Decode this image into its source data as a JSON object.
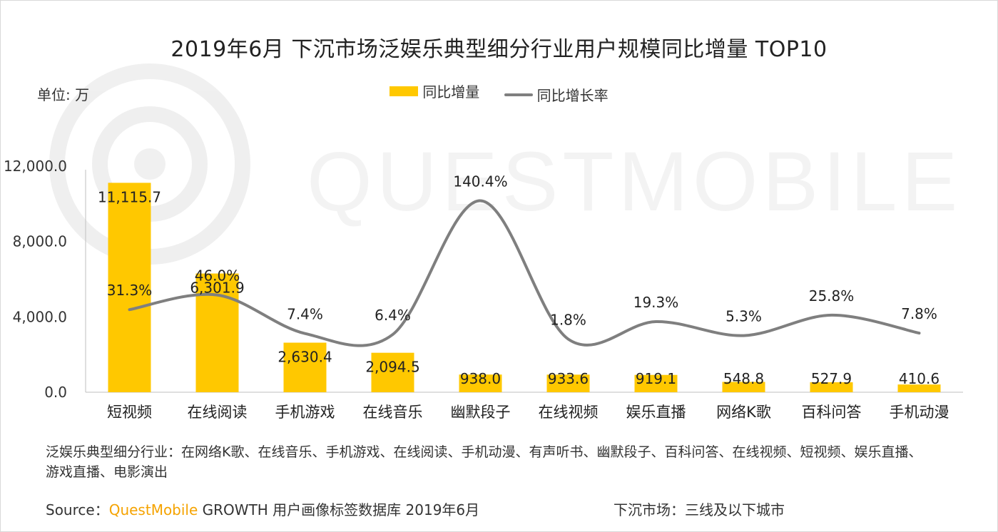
{
  "title": "2019年6月 下沉市场泛娱乐典型细分行业用户规模同比增量 TOP10",
  "unit_label": "单位: 万",
  "legend": {
    "bar": "同比增量",
    "line": "同比增长率"
  },
  "watermark": "QUESTMOBILE",
  "note": "泛娱乐典型细分行业：在网络K歌、在线音乐、手机游戏、在线阅读、手机动漫、有声听书、幽默段子、百科问答、在线视频、短视频、娱乐直播、游戏直播、电影演出",
  "source": {
    "prefix": "Source：",
    "brand": "QuestMobile",
    "suffix": " GROWTH 用户画像标签数据库  2019年6月"
  },
  "market_note": "下沉市场：三线及以下城市",
  "colors": {
    "bar": "#FFC800",
    "line": "#7f7f7f",
    "brand": "#F5A300"
  },
  "chart_data": {
    "type": "bar",
    "title": "2019年6月 下沉市场泛娱乐典型细分行业用户规模同比增量 TOP10",
    "categories": [
      "短视频",
      "在线阅读",
      "手机游戏",
      "在线音乐",
      "幽默段子",
      "在线视频",
      "娱乐直播",
      "网络K歌",
      "百科问答",
      "手机动漫"
    ],
    "series": [
      {
        "name": "同比增量",
        "type": "bar",
        "values": [
          11115.7,
          6301.9,
          2630.4,
          2094.5,
          938.0,
          933.6,
          919.1,
          548.8,
          527.9,
          410.6
        ],
        "labels": [
          "11,115.7",
          "6,301.9",
          "2,630.4",
          "2,094.5",
          "938.0",
          "933.6",
          "919.1",
          "548.8",
          "527.9",
          "410.6"
        ]
      },
      {
        "name": "同比增长率",
        "type": "line",
        "values": [
          31.3,
          46.0,
          7.4,
          6.4,
          140.4,
          1.8,
          19.3,
          5.3,
          25.8,
          7.8
        ],
        "labels": [
          "31.3%",
          "46.0%",
          "7.4%",
          "6.4%",
          "140.4%",
          "1.8%",
          "19.3%",
          "5.3%",
          "25.8%",
          "7.8%"
        ]
      }
    ],
    "yticks": [
      "0.0",
      "4,000.0",
      "8,000.0",
      "12,000.0"
    ],
    "ylim": [
      0,
      12000
    ],
    "ylabel": "单位: 万",
    "grid": false,
    "legend_position": "top-center"
  }
}
